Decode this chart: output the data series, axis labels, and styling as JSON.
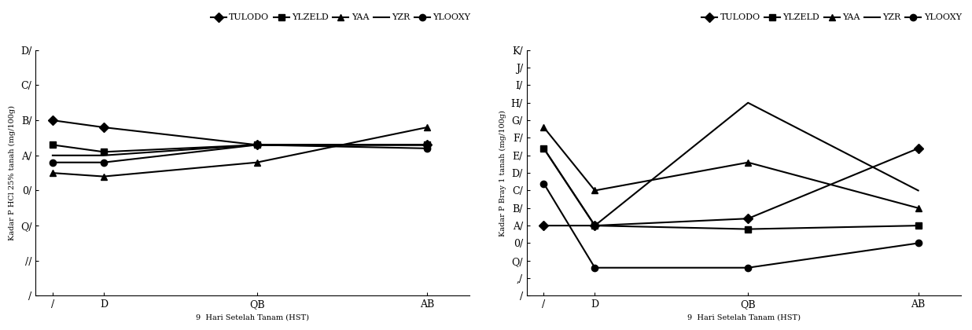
{
  "left_chart": {
    "xlabel": "9  Hari Setelah Tanam (HST)",
    "ylabel": "Kadar P HCl 25% tanah (mg/100g)",
    "x_positions": [
      1,
      7,
      25,
      45
    ],
    "x_tick_labels": [
      "/",
      "D",
      "QB",
      "AB"
    ],
    "ylim": [
      0,
      70
    ],
    "ytick_positions": [
      0,
      10,
      20,
      30,
      40,
      50,
      60,
      70
    ],
    "ytick_labels": [
      "/",
      "//",
      "Q/",
      "0/",
      "A/",
      "B/",
      "C/",
      "D/"
    ],
    "series": [
      {
        "label": "TULODO",
        "marker": "D",
        "values": [
          50,
          48,
          43,
          43
        ]
      },
      {
        "label": "YLZELD",
        "marker": "s",
        "values": [
          43,
          41,
          43,
          43
        ]
      },
      {
        "label": "YAA",
        "marker": "^",
        "values": [
          35,
          34,
          38,
          48
        ]
      },
      {
        "label": "YZR",
        "marker": null,
        "values": [
          40,
          40,
          43,
          43
        ]
      },
      {
        "label": "YLOOXY",
        "marker": "o",
        "values": [
          38,
          38,
          43,
          42
        ]
      }
    ]
  },
  "right_chart": {
    "xlabel": "9  Hari Setelah Tanam (HST)",
    "ylabel": "Kadar P Bray 1 tanah (mg/100g)",
    "x_positions": [
      1,
      7,
      25,
      45
    ],
    "x_tick_labels": [
      "/",
      "D",
      "QB",
      "AB"
    ],
    "ylim": [
      -10,
      60
    ],
    "ytick_positions": [
      -10,
      -5,
      0,
      5,
      10,
      15,
      20,
      25,
      30,
      35,
      40,
      45,
      50,
      55,
      60
    ],
    "ytick_labels": [
      "/",
      ",/",
      "Q/",
      "0/",
      "A/",
      "B/",
      "C/",
      "D/",
      "E/",
      "F/",
      "G/",
      "H/",
      "I/",
      "J/",
      "K/"
    ],
    "series": [
      {
        "label": "TULODO",
        "marker": "D",
        "values": [
          10,
          10,
          12,
          32
        ]
      },
      {
        "label": "YLZELD",
        "marker": "s",
        "values": [
          32,
          10,
          9,
          10
        ]
      },
      {
        "label": "YAA",
        "marker": "^",
        "values": [
          38,
          20,
          28,
          15
        ]
      },
      {
        "label": "YZR",
        "marker": null,
        "values": [
          32,
          10,
          45,
          20
        ]
      },
      {
        "label": "YLOOXY",
        "marker": "o",
        "values": [
          22,
          -2,
          -2,
          5
        ]
      }
    ]
  },
  "legend_entries": [
    {
      "label": "TULODO",
      "marker": "D"
    },
    {
      "label": "YLZELD",
      "marker": "s"
    },
    {
      "label": "YAA",
      "marker": "^"
    },
    {
      "label": "YZR",
      "marker": null
    },
    {
      "label": "YLOOXY",
      "marker": "o"
    }
  ],
  "line_width": 1.5,
  "marker_size": 6,
  "font_size_legend": 8,
  "font_size_tick": 9,
  "font_size_label": 7,
  "font_size_ytick": 9
}
